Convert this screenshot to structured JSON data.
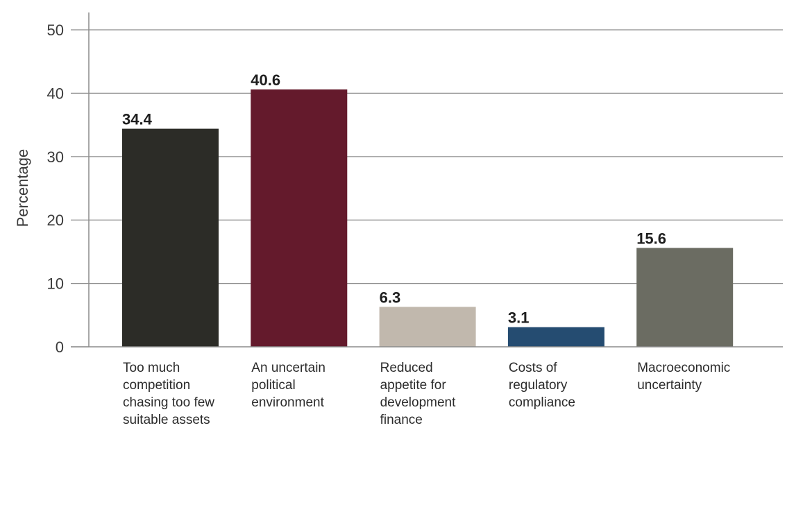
{
  "chart_data": {
    "type": "bar",
    "ylabel": "Percentage",
    "xlabel": "",
    "ylim": [
      0,
      50
    ],
    "yticks": [
      "0",
      "10",
      "20",
      "30",
      "40",
      "50"
    ],
    "grid": true,
    "categories": [
      [
        "Too much",
        "competition",
        "chasing too few",
        "suitable assets"
      ],
      [
        "An uncertain",
        "political",
        "environment"
      ],
      [
        "Reduced",
        "appetite for",
        "development",
        "finance"
      ],
      [
        "Costs of",
        "regulatory",
        "compliance"
      ],
      [
        "Macroeconomic",
        "uncertainty"
      ]
    ],
    "values": [
      34.4,
      40.6,
      6.3,
      3.1,
      15.6
    ],
    "value_labels": [
      "34.4",
      "40.6",
      "6.3",
      "3.1",
      "15.6"
    ],
    "colors": [
      "#2c2c27",
      "#641a2c",
      "#c1b8ad",
      "#254c71",
      "#6b6c62"
    ]
  }
}
